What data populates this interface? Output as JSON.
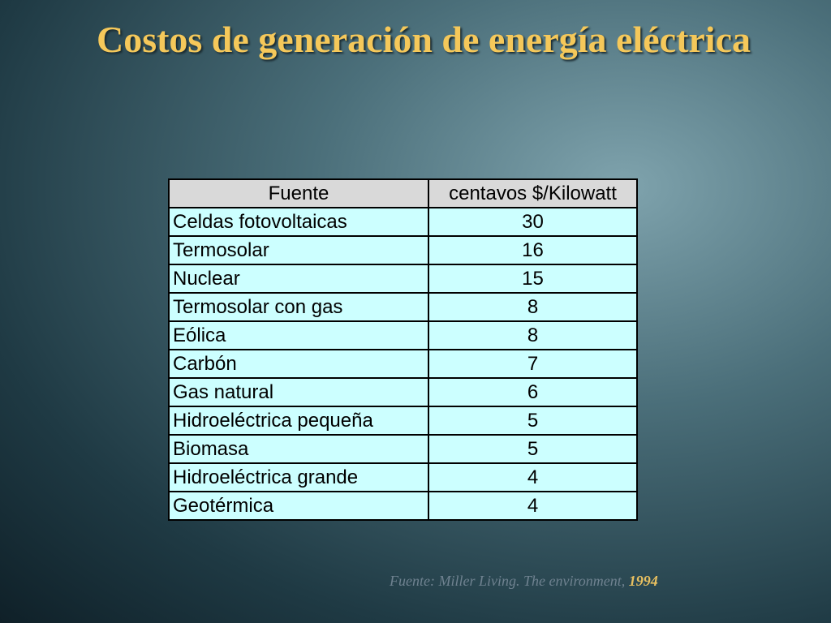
{
  "title": "Costos de generación de energía eléctrica",
  "table": {
    "header": [
      "Fuente",
      "centavos $/Kilowatt"
    ],
    "rows": [
      [
        "Celdas fotovoltaicas",
        30
      ],
      [
        "Termosolar",
        16
      ],
      [
        "Nuclear",
        15
      ],
      [
        "Termosolar con gas",
        8
      ],
      [
        "Eólica",
        8
      ],
      [
        "Carbón",
        7
      ],
      [
        "Gas natural",
        6
      ],
      [
        "Hidroeléctrica pequeña",
        5
      ],
      [
        "Biomasa",
        5
      ],
      [
        "Hidroeléctrica grande",
        4
      ],
      [
        "Geotérmica",
        4
      ]
    ]
  },
  "source": {
    "text": "Fuente: Miller Living. The environment,",
    "year": "1994"
  }
}
